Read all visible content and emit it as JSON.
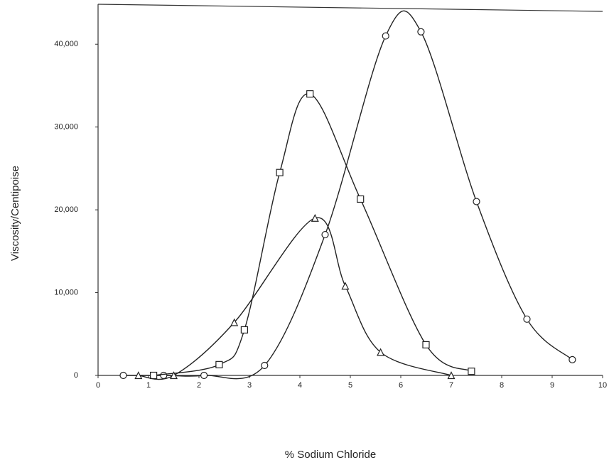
{
  "chart_data": {
    "type": "line",
    "xlabel": "% Sodium Chloride",
    "ylabel": "Viscosity/Centipoise",
    "xlim": [
      0,
      10
    ],
    "xticks": [
      0,
      1,
      2,
      3,
      4,
      5,
      6,
      7,
      8,
      9,
      10
    ],
    "ylim": [
      0,
      45000
    ],
    "yticks": [
      0,
      {
        "value": 10000,
        "label": "10,000"
      },
      {
        "value": 20000,
        "label": "20,000"
      },
      {
        "value": 30000,
        "label": "30,000"
      },
      {
        "value": 40000,
        "label": "40,000"
      }
    ],
    "series": [
      {
        "marker": "circle",
        "color": "#222222",
        "x": [
          0.5,
          1.3,
          2.1,
          3.3,
          4.5,
          5.7,
          6.4,
          7.5,
          8.5,
          9.4
        ],
        "values": [
          0,
          0,
          0,
          1200,
          17000,
          41000,
          41500,
          21000,
          6800,
          1900
        ]
      },
      {
        "marker": "square",
        "color": "#222222",
        "x": [
          1.1,
          2.4,
          2.9,
          3.6,
          4.2,
          5.2,
          6.5,
          7.4
        ],
        "values": [
          0,
          1300,
          5500,
          24500,
          34000,
          21300,
          3700,
          500
        ]
      },
      {
        "marker": "triangle",
        "color": "#222222",
        "x": [
          0.8,
          1.5,
          2.7,
          4.3,
          4.9,
          5.6,
          7.0
        ],
        "values": [
          0,
          0,
          6400,
          19000,
          10800,
          2800,
          0
        ]
      }
    ]
  }
}
